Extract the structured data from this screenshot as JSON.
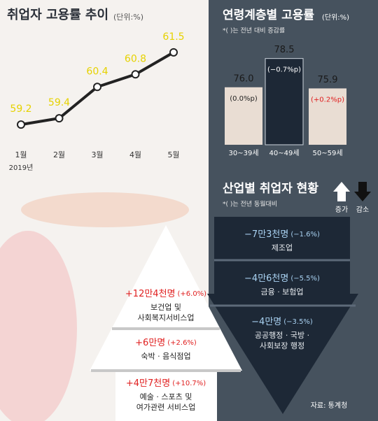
{
  "chart_data": [
    {
      "type": "line",
      "title": "취업자 고용률 추이",
      "subtitle": "(단위:%)",
      "categories": [
        "1월",
        "2월",
        "3월",
        "4월",
        "5월"
      ],
      "year_label": "2019년",
      "values": [
        59.2,
        59.4,
        60.4,
        60.8,
        61.5
      ],
      "color": "#222222",
      "label_color": "#e6d200",
      "ylim": [
        58,
        62.5
      ]
    },
    {
      "type": "bar",
      "title": "연령계층별 고용률",
      "subtitle": "(단위:%)",
      "note": "*( )는 전년 대비 증감률",
      "categories": [
        "30~39세",
        "40~49세",
        "50~59세"
      ],
      "values": [
        76.0,
        78.5,
        75.9
      ],
      "value_labels": [
        "76.0",
        "78.5",
        "75.9"
      ],
      "changes": [
        "(0.0%p)",
        "(−0.7%p)",
        "(+0.2%p)"
      ],
      "colors": [
        "#e9ddd3",
        "#1d2836",
        "#e9ddd3"
      ],
      "change_colors": [
        "#222222",
        "#ffffff",
        "#e02020"
      ],
      "ylim": [
        71,
        80
      ]
    }
  ],
  "industry": {
    "title": "산업별 취업자 현황",
    "note": "*( )는 전년 동월대비",
    "legend_increase": "증가",
    "legend_decrease": "감소",
    "decrease": [
      {
        "change": "−7만3천명",
        "pct": "(−1.6%)",
        "sector": [
          "제조업"
        ]
      },
      {
        "change": "−4만6천명",
        "pct": "(−5.5%)",
        "sector": [
          "금융 · 보험업"
        ]
      },
      {
        "change": "−4만명",
        "pct": "(−3.5%)",
        "sector": [
          "공공행정 · 국방 ·",
          "사회보장 행정"
        ]
      }
    ],
    "increase": [
      {
        "change": "+12만4천명",
        "pct": "(+6.0%)",
        "sector": [
          "보건업 및",
          "사회복지서비스업"
        ]
      },
      {
        "change": "+6만명",
        "pct": "(+2.6%)",
        "sector": [
          "숙박 · 음식점업"
        ]
      },
      {
        "change": "+4만7천명",
        "pct": "(+10.7%)",
        "sector": [
          "예술 · 스포츠 및",
          "여가관련 서비스업"
        ]
      }
    ],
    "source": "자료: 통계청"
  }
}
